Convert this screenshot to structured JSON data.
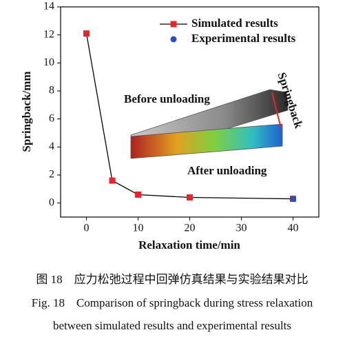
{
  "chart_data": {
    "type": "line",
    "xlabel": "Relaxation time/min",
    "ylabel": "Springback/mm",
    "xlim": [
      -5,
      45
    ],
    "ylim": [
      -1,
      14
    ],
    "xticks": [
      0,
      10,
      20,
      30,
      40
    ],
    "yticks": [
      0,
      2,
      4,
      6,
      8,
      10,
      12,
      14
    ],
    "legend": "upper right",
    "series": [
      {
        "name": "Simulated results",
        "color": "#e8262a",
        "line_color": "#000000",
        "marker": "square",
        "x": [
          0,
          5,
          10,
          20,
          40
        ],
        "values": [
          12.1,
          1.6,
          0.6,
          0.4,
          0.3
        ]
      },
      {
        "name": "Experimental results",
        "color": "#2e4fb5",
        "marker": "circle",
        "x": [
          40
        ],
        "values": [
          0.3
        ]
      }
    ],
    "annotations": [
      "Before unloading",
      "After unloading",
      "Springback"
    ]
  },
  "caption": {
    "chinese": "图 18　应力松弛过程中回弹仿真结果与实验结果对比",
    "english": [
      "Fig. 18　Comparison of springback during stress relaxation",
      "between simulated results and experimental results"
    ]
  }
}
